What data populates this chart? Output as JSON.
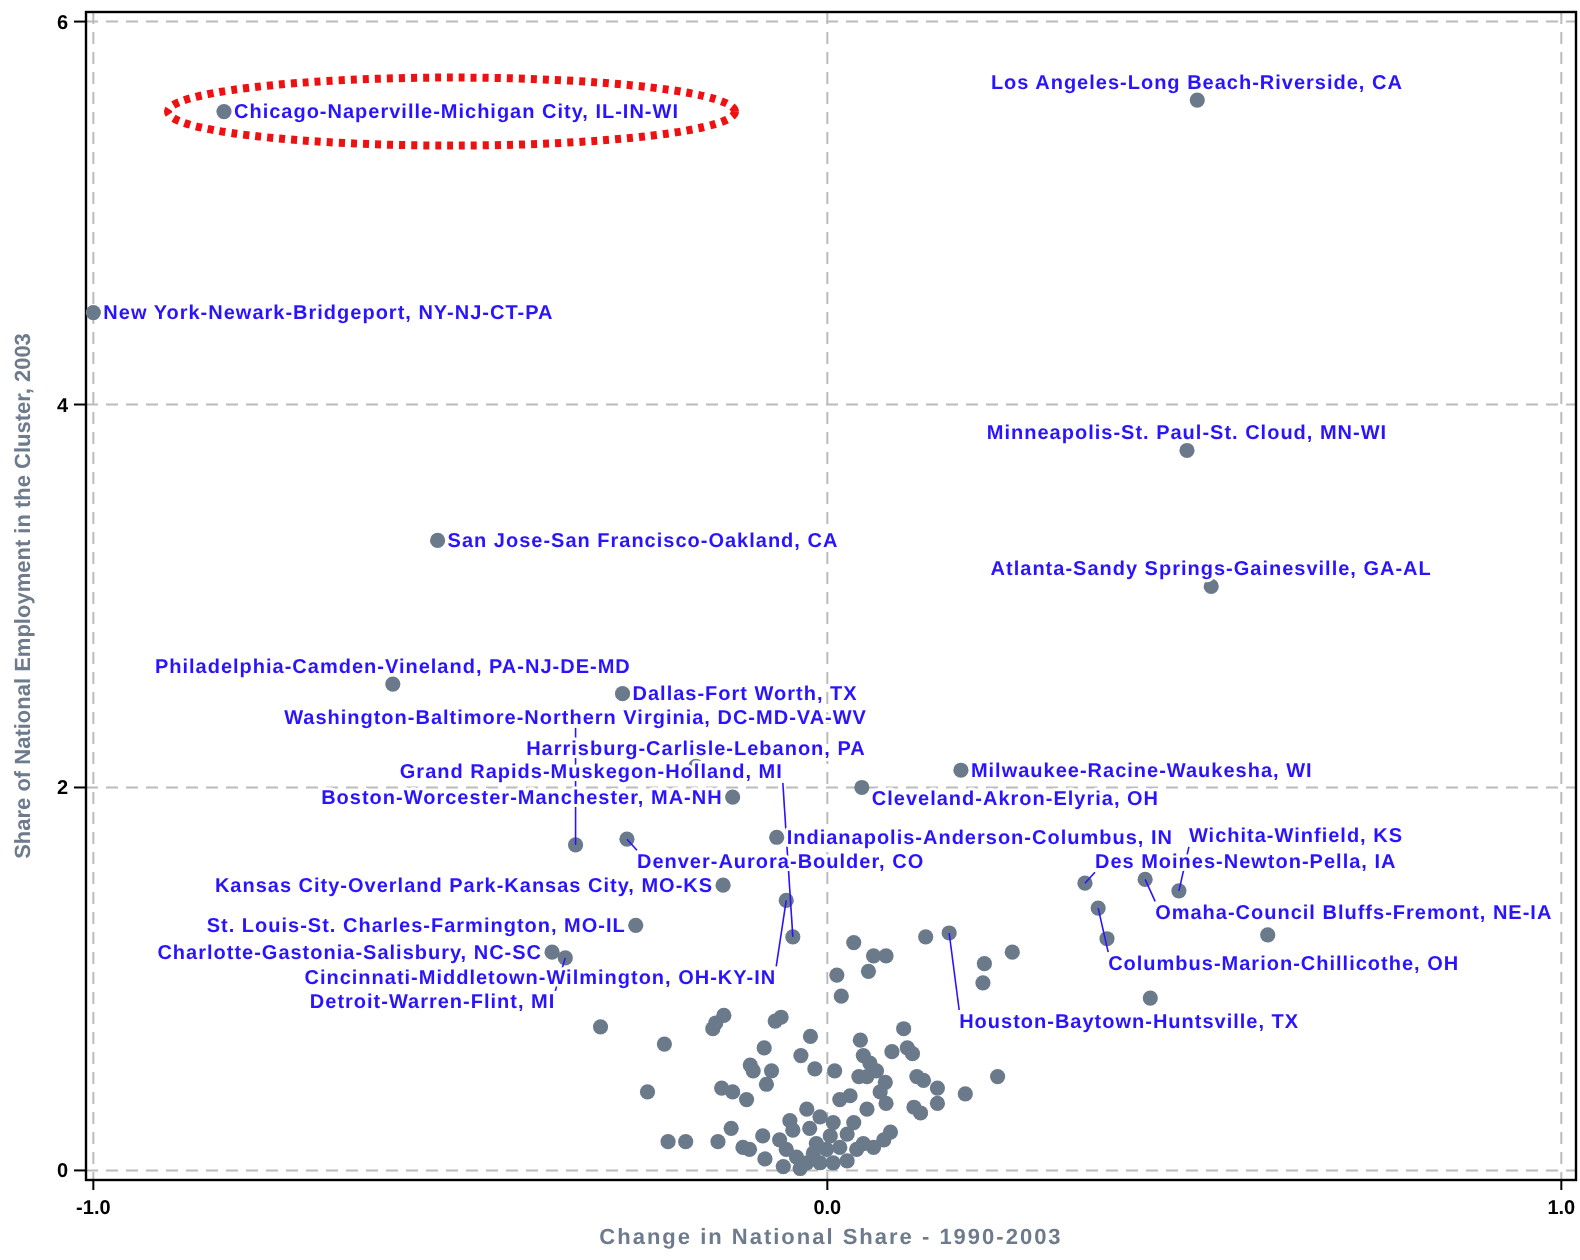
{
  "chart_data": {
    "type": "scatter",
    "xlabel": "Change in National Share - 1990-2003",
    "ylabel": "Share of National Employment in the Cluster, 2003",
    "xlim": [
      -1.01,
      1.02
    ],
    "ylim": [
      -0.05,
      6.05
    ],
    "xticks": [
      {
        "value": -1,
        "label": "-1.0"
      },
      {
        "value": 0,
        "label": "0.0"
      },
      {
        "value": 1,
        "label": "1.0"
      }
    ],
    "yticks": [
      0,
      2,
      4,
      6
    ],
    "grid": true,
    "marker": "circle",
    "series": [
      {
        "color": "#6b7a8a",
        "x": [
          -0.822,
          0.504,
          -1.0,
          0.49,
          0.523,
          -0.531,
          -0.592,
          -0.279,
          -0.179,
          0.182,
          0.047,
          -0.129,
          -0.343,
          -0.273,
          -0.069,
          0.351,
          0.433,
          0.479,
          -0.142,
          -0.056,
          -0.261,
          -0.375,
          -0.357,
          -0.047,
          0.166,
          0.369,
          0.134,
          0.036,
          0.381,
          0.6,
          0.063,
          0.08,
          0.252,
          0.214,
          0.013,
          0.019,
          0.056,
          0.212,
          0.44,
          -0.309,
          -0.222,
          -0.245,
          -0.156,
          -0.152,
          -0.141,
          -0.071,
          -0.063,
          -0.086,
          -0.023,
          -0.036,
          -0.105,
          -0.101,
          -0.076,
          -0.083,
          -0.144,
          -0.129,
          -0.11,
          -0.017,
          0.01,
          0.045,
          0.049,
          0.058,
          0.067,
          0.043,
          0.054,
          0.088,
          0.104,
          0.109,
          0.116,
          0.122,
          0.131,
          0.15,
          0.079,
          0.072,
          0.08,
          0.15,
          0.188,
          0.232,
          0.017,
          0.031,
          0.054,
          0.118,
          0.127,
          -0.217,
          -0.193,
          -0.149,
          -0.131,
          -0.115,
          -0.106,
          -0.085,
          -0.088,
          -0.06,
          -0.037,
          -0.051,
          -0.028,
          -0.01,
          0.008,
          -0.047,
          -0.024,
          -0.065,
          -0.056,
          -0.042,
          -0.028,
          -0.01,
          0.008,
          0.027,
          0.04,
          0.049,
          0.063,
          0.077,
          0.086,
          -0.001,
          0.017,
          -0.015,
          0.004,
          0.027,
          0.036,
          -0.019
        ],
        "values": [
          5.53,
          5.59,
          4.48,
          3.76,
          3.05,
          3.29,
          2.54,
          2.49,
          2.11,
          2.09,
          2.0,
          1.95,
          1.7,
          1.73,
          1.74,
          1.5,
          1.52,
          1.46,
          1.49,
          1.41,
          1.28,
          1.14,
          1.11,
          1.22,
          1.24,
          1.37,
          1.22,
          1.19,
          1.21,
          1.23,
          1.12,
          1.12,
          1.14,
          1.08,
          1.02,
          0.91,
          1.04,
          0.98,
          0.9,
          0.75,
          0.66,
          0.41,
          0.74,
          0.77,
          0.81,
          0.78,
          0.8,
          0.64,
          0.7,
          0.6,
          0.55,
          0.52,
          0.52,
          0.45,
          0.43,
          0.41,
          0.37,
          0.53,
          0.52,
          0.68,
          0.6,
          0.56,
          0.52,
          0.49,
          0.49,
          0.62,
          0.74,
          0.64,
          0.61,
          0.49,
          0.47,
          0.43,
          0.46,
          0.41,
          0.35,
          0.35,
          0.4,
          0.49,
          0.37,
          0.39,
          0.32,
          0.33,
          0.3,
          0.15,
          0.15,
          0.15,
          0.22,
          0.12,
          0.11,
          0.06,
          0.18,
          0.02,
          0.01,
          0.26,
          0.32,
          0.28,
          0.25,
          0.21,
          0.22,
          0.16,
          0.11,
          0.07,
          0.04,
          0.04,
          0.04,
          0.05,
          0.11,
          0.14,
          0.12,
          0.16,
          0.2,
          0.11,
          0.12,
          0.14,
          0.18,
          0.19,
          0.25,
          0.09
        ]
      }
    ],
    "annotations": [
      {
        "text": "Chicago-Naperville-Michigan City, IL-IN-WI",
        "x": -0.822,
        "y": 5.53
      },
      {
        "text": "Los Angeles-Long Beach-Riverside, CA",
        "x": 0.504,
        "y": 5.59
      },
      {
        "text": "New York-Newark-Bridgeport, NY-NJ-CT-PA",
        "x": -1.0,
        "y": 4.48
      },
      {
        "text": "Minneapolis-St. Paul-St. Cloud, MN-WI",
        "x": 0.49,
        "y": 3.76
      },
      {
        "text": "Atlanta-Sandy Springs-Gainesville, GA-AL",
        "x": 0.523,
        "y": 3.05
      },
      {
        "text": "San Jose-San Francisco-Oakland, CA",
        "x": -0.531,
        "y": 3.29
      },
      {
        "text": "Philadelphia-Camden-Vineland, PA-NJ-DE-MD",
        "x": -0.592,
        "y": 2.54
      },
      {
        "text": "Dallas-Fort Worth, TX",
        "x": -0.279,
        "y": 2.49
      },
      {
        "text": "Harrisburg-Carlisle-Lebanon, PA",
        "x": -0.179,
        "y": 2.11
      },
      {
        "text": "Milwaukee-Racine-Waukesha, WI",
        "x": 0.182,
        "y": 2.09
      },
      {
        "text": "Cleveland-Akron-Elyria, OH",
        "x": 0.047,
        "y": 2.0
      },
      {
        "text": "Boston-Worcester-Manchester, MA-NH",
        "x": -0.129,
        "y": 1.95
      },
      {
        "text": "Washington-Baltimore-Northern Virginia, DC-MD-VA-WV",
        "x": -0.343,
        "y": 1.7
      },
      {
        "text": "Denver-Aurora-Boulder, CO",
        "x": -0.273,
        "y": 1.73
      },
      {
        "text": "Indianapolis-Anderson-Columbus, IN",
        "x": -0.069,
        "y": 1.74
      },
      {
        "text": "Des Moines-Newton-Pella, IA",
        "x": 0.351,
        "y": 1.5
      },
      {
        "text": "Omaha-Council Bluffs-Fremont, NE-IA",
        "x": 0.433,
        "y": 1.52
      },
      {
        "text": "Wichita-Winfield, KS",
        "x": 0.479,
        "y": 1.46
      },
      {
        "text": "Kansas City-Overland Park-Kansas City, MO-KS",
        "x": -0.142,
        "y": 1.49
      },
      {
        "text": "Cincinnati-Middletown-Wilmington, OH-KY-IN",
        "x": -0.056,
        "y": 1.41
      },
      {
        "text": "St. Louis-St. Charles-Farmington, MO-IL",
        "x": -0.261,
        "y": 1.28
      },
      {
        "text": "Charlotte-Gastonia-Salisbury, NC-SC",
        "x": -0.375,
        "y": 1.14
      },
      {
        "text": "Detroit-Warren-Flint, MI",
        "x": -0.357,
        "y": 1.11
      },
      {
        "text": "Grand Rapids-Muskegon-Holland, MI",
        "x": -0.047,
        "y": 1.22
      },
      {
        "text": "Houston-Baytown-Huntsville, TX",
        "x": 0.166,
        "y": 1.24
      },
      {
        "text": "Columbus-Marion-Chillicothe, OH",
        "x": 0.369,
        "y": 1.37
      }
    ]
  }
}
